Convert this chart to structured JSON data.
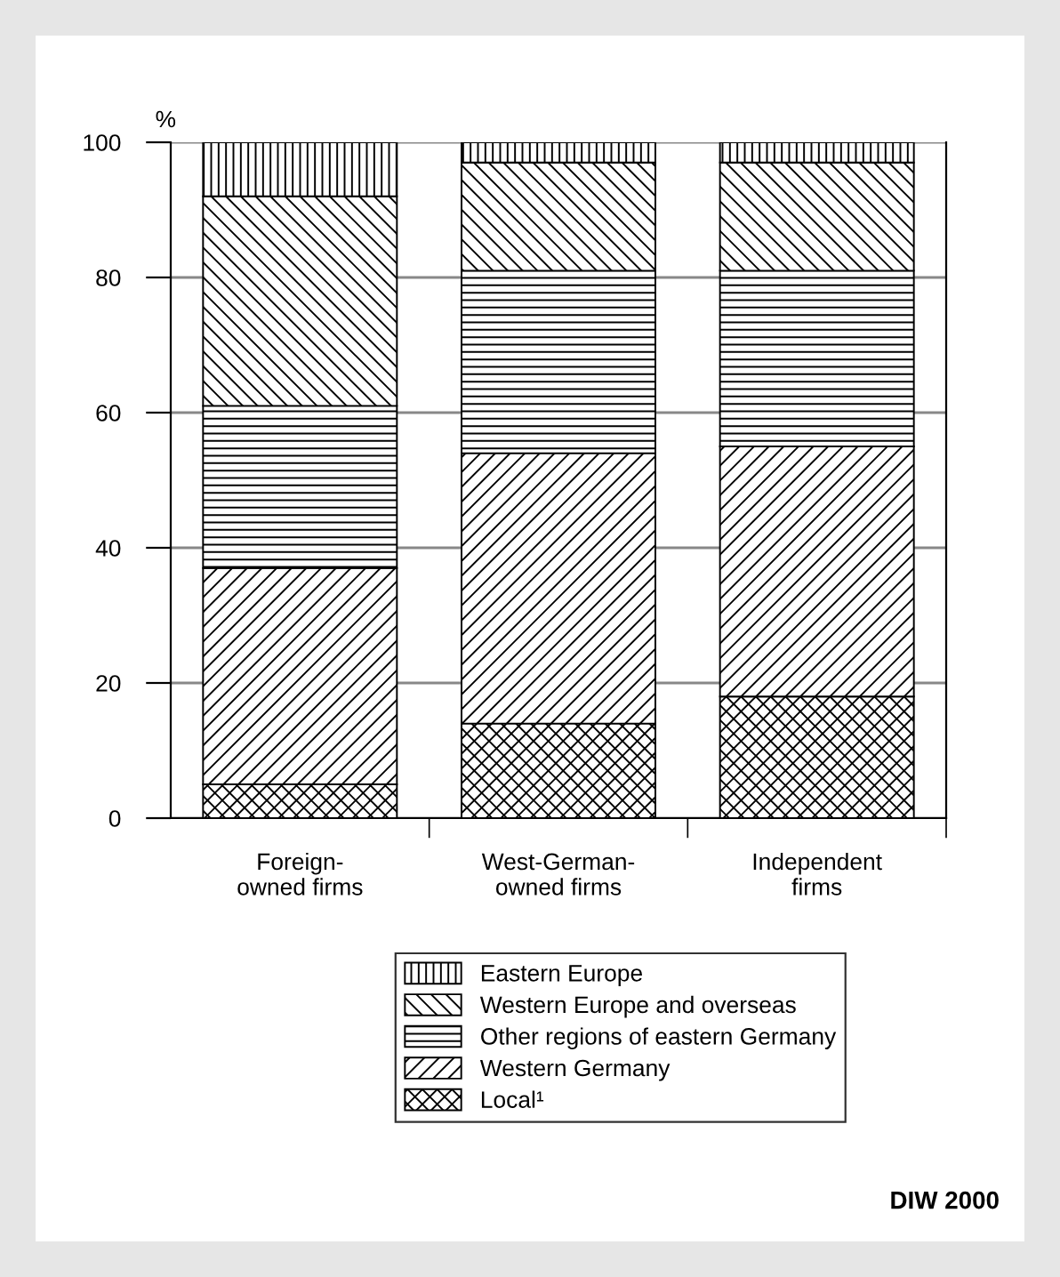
{
  "chart_data": {
    "type": "bar",
    "stacked": true,
    "ylabel": "%",
    "categories": [
      "Foreign-\nowned firms",
      "West-German-\nowned firms",
      "Independent\nfirms"
    ],
    "series": [
      {
        "name": "Local¹",
        "color": "#000000",
        "values": [
          5,
          14,
          18
        ]
      },
      {
        "name": "Western Germany",
        "color": "#000000",
        "values": [
          32,
          40,
          37
        ]
      },
      {
        "name": "Other regions of eastern Germany",
        "color": "#000000",
        "values": [
          24,
          27,
          26
        ]
      },
      {
        "name": "Western Europe and overseas",
        "color": "#000000",
        "values": [
          31,
          16,
          16
        ]
      },
      {
        "name": "Eastern Europe",
        "color": "#000000",
        "values": [
          8,
          3,
          3
        ]
      }
    ],
    "ylim": [
      0,
      100
    ],
    "yticks": [
      0,
      20,
      40,
      60,
      80,
      100
    ],
    "grid": "y",
    "legend": "bottom",
    "annotations": [
      "DIW 2000"
    ]
  }
}
